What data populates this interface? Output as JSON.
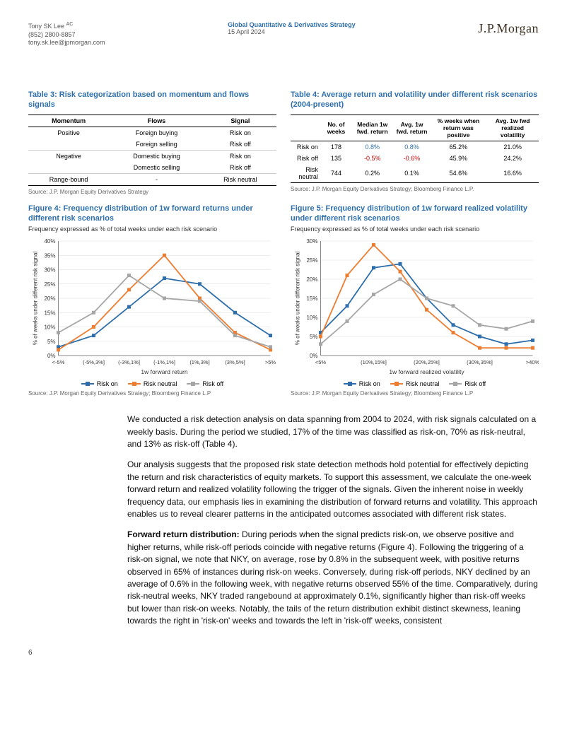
{
  "header": {
    "author": "Tony SK Lee",
    "ac": "AC",
    "phone": "(852) 2800-8857",
    "email": "tony.sk.lee@jpmorgan.com",
    "pub_title": "Global Quantitative & Derivatives Strategy",
    "pub_date": "15 April 2024",
    "logo": "J.P.Morgan"
  },
  "table3": {
    "title": "Table 3: Risk categorization based on momentum and flows signals",
    "columns": [
      "Momentum",
      "Flows",
      "Signal"
    ],
    "rows": [
      [
        "Positive",
        "Foreign buying",
        "Risk on"
      ],
      [
        "",
        "Foreign selling",
        "Risk off"
      ],
      [
        "Negative",
        "Domestic buying",
        "Risk on"
      ],
      [
        "",
        "Domestic selling",
        "Risk off"
      ],
      [
        "Range-bound",
        "-",
        "Risk neutral"
      ]
    ],
    "source": "Source: J.P. Morgan Equity Derivatives Strategy"
  },
  "table4": {
    "title": "Table 4: Average return and volatility under different risk scenarios (2004-present)",
    "columns": [
      "",
      "No. of weeks",
      "Median 1w fwd. return",
      "Avg. 1w fwd. return",
      "% weeks when return was positive",
      "Avg. 1w fwd realized volatility"
    ],
    "rows": [
      {
        "label": "Risk on",
        "weeks": "178",
        "median": "0.8%",
        "median_cls": "pos",
        "avg": "0.8%",
        "avg_cls": "pos",
        "pct": "65.2%",
        "vol": "21.0%"
      },
      {
        "label": "Risk off",
        "weeks": "135",
        "median": "-0.5%",
        "median_cls": "neg",
        "avg": "-0.6%",
        "avg_cls": "neg",
        "pct": "45.9%",
        "vol": "24.2%"
      },
      {
        "label": "Risk neutral",
        "weeks": "744",
        "median": "0.2%",
        "median_cls": "",
        "avg": "0.1%",
        "avg_cls": "",
        "pct": "54.6%",
        "vol": "16.6%"
      }
    ],
    "source": "Source: J.P. Morgan Equity Derivatives Strategy; Bloomberg Finance L.P."
  },
  "figure4": {
    "title": "Figure 4: Frequency distribution of 1w forward returns under different risk scenarios",
    "subtitle": "Frequency expressed as % of total weeks under each risk scenario",
    "type": "line",
    "ylabel": "% of weeks under different risk signal",
    "xlabel": "1w forward return",
    "categories": [
      "<-5%",
      "(-5%,3%]",
      "(-3%,1%]",
      "(-1%,1%]",
      "(1%,3%]",
      "(3%,5%]",
      ">5%"
    ],
    "ylim": [
      0,
      40
    ],
    "ytick_step": 5,
    "series": [
      {
        "name": "Risk on",
        "color": "#2e6fab",
        "marker": "square",
        "values": [
          3,
          7,
          17,
          27,
          25,
          15,
          7
        ]
      },
      {
        "name": "Risk neutral",
        "color": "#ed7d31",
        "marker": "square",
        "values": [
          2,
          10,
          23,
          35,
          20,
          8,
          2
        ]
      },
      {
        "name": "Risk off",
        "color": "#a6a6a6",
        "marker": "square",
        "values": [
          8,
          15,
          28,
          20,
          19,
          7,
          3
        ]
      }
    ],
    "grid_color": "#d9d9d9",
    "background_color": "#ffffff",
    "label_fontsize": 9,
    "source": "Source: J.P. Morgan Equity Derivatives Strategy; Bloomberg Finance L.P"
  },
  "figure5": {
    "title": "Figure 5: Frequency distribution of 1w forward realized volatility under different risk scenarios",
    "subtitle": "Frequency expressed as % of total weeks under each risk scenario",
    "type": "line",
    "ylabel": "% of weeks under different risk signal",
    "xlabel": "1w forward realized volatility",
    "categories": [
      "<5%",
      "(10%,15%]",
      "(20%,25%]",
      "(30%,35%]",
      ">40%"
    ],
    "ylim": [
      0,
      30
    ],
    "ytick_step": 5,
    "series": [
      {
        "name": "Risk on",
        "color": "#2e6fab",
        "marker": "square",
        "values_9": [
          6,
          13,
          23,
          24,
          15,
          8,
          5,
          3,
          4
        ]
      },
      {
        "name": "Risk neutral",
        "color": "#ed7d31",
        "marker": "square",
        "values_9": [
          5,
          21,
          29,
          22,
          12,
          6,
          2,
          2,
          2
        ]
      },
      {
        "name": "Risk off",
        "color": "#a6a6a6",
        "marker": "square",
        "values_9": [
          3,
          9,
          16,
          20,
          15,
          13,
          8,
          7,
          9
        ]
      }
    ],
    "xlabels_9": [
      "<5%",
      "",
      "(10%,15%]",
      "",
      "(20%,25%]",
      "",
      "(30%,35%]",
      "",
      ">40%"
    ],
    "grid_color": "#d9d9d9",
    "background_color": "#ffffff",
    "label_fontsize": 9,
    "source": "Source: J.P. Morgan Equity Derivatives Strategy; Bloomberg Finance L.P"
  },
  "body": {
    "p1": "We conducted a risk detection analysis on data spanning from 2004 to 2024, with risk signals calculated on a weekly basis. During the period we studied, 17% of the time was classified as risk-on, 70% as risk-neutral, and 13% as risk-off (Table 4).",
    "p2": "Our analysis suggests that the proposed risk state detection methods hold potential for effectively depicting the return and risk characteristics of equity markets. To support this assessment, we calculate the one-week forward return and realized volatility following the trigger of the signals. Given the inherent noise in weekly frequency data, our emphasis lies in examining the distribution of forward returns and volatility. This approach enables us to reveal clearer patterns in the anticipated outcomes associated with different risk states.",
    "p3_lead": "Forward return distribution:",
    "p3": " During periods when the signal predicts risk-on, we observe positive and higher returns, while risk-off periods coincide with negative returns (Figure 4). Following the triggering of a risk-on signal, we note that NKY, on average, rose by 0.8% in the subsequent week, with positive returns observed in 65% of instances during risk-on weeks. Conversely, during risk-off periods, NKY declined by an average of 0.6% in the following week, with negative returns observed 55% of the time. Comparatively, during risk-neutral weeks, NKY traded rangebound at approximately 0.1%, significantly higher than risk-off weeks but lower than risk-on weeks. Notably, the tails of the return distribution exhibit distinct skewness, leaning towards the right in 'risk-on' weeks and towards the left in 'risk-off' weeks, consistent"
  },
  "pagenum": "6",
  "legend_labels": {
    "on": "Risk on",
    "neutral": "Risk neutral",
    "off": "Risk off"
  }
}
